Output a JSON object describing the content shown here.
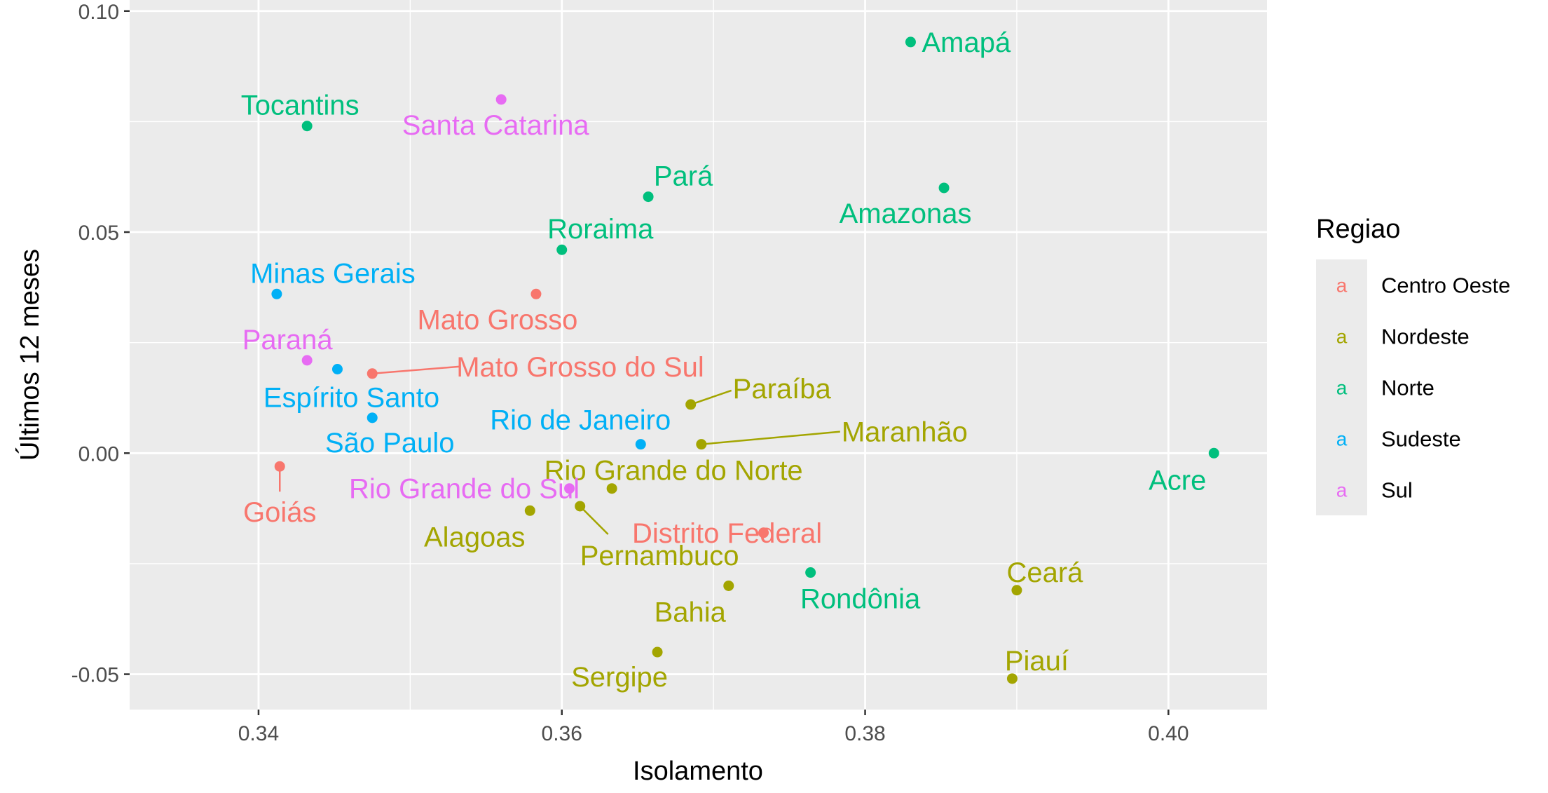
{
  "chart_data": {
    "type": "scatter",
    "xlabel": "Isolamento",
    "ylabel": "Últimos 12 meses",
    "xlim": [
      0.3315,
      0.4065
    ],
    "ylim": [
      -0.058,
      0.1025
    ],
    "x_ticks": [
      0.34,
      0.36,
      0.38,
      0.4
    ],
    "x_tick_labels": [
      "0.34",
      "0.36",
      "0.38",
      "0.40"
    ],
    "y_ticks": [
      -0.05,
      0.0,
      0.05,
      0.1
    ],
    "y_tick_labels": [
      "-0.05",
      "0.00",
      "0.05",
      "0.10"
    ],
    "grid": true,
    "legend": {
      "title": "Regiao",
      "placement": "right",
      "entries": [
        "Centro Oeste",
        "Nordeste",
        "Norte",
        "Sudeste",
        "Sul"
      ],
      "key_glyph": "a"
    },
    "colors": {
      "Centro Oeste": "#F8766D",
      "Nordeste": "#A3A500",
      "Norte": "#00BF7D",
      "Sudeste": "#00B0F6",
      "Sul": "#E76BF3"
    },
    "points": [
      {
        "label": "Amapá",
        "region": "Norte",
        "x": 0.383,
        "y": 0.093
      },
      {
        "label": "Tocantins",
        "region": "Norte",
        "x": 0.3432,
        "y": 0.074
      },
      {
        "label": "Santa Catarina",
        "region": "Sul",
        "x": 0.356,
        "y": 0.08
      },
      {
        "label": "Pará",
        "region": "Norte",
        "x": 0.3657,
        "y": 0.058
      },
      {
        "label": "Amazonas",
        "region": "Norte",
        "x": 0.3852,
        "y": 0.06
      },
      {
        "label": "Roraima",
        "region": "Norte",
        "x": 0.36,
        "y": 0.046
      },
      {
        "label": "Minas Gerais",
        "region": "Sudeste",
        "x": 0.3412,
        "y": 0.036
      },
      {
        "label": "Mato Grosso",
        "region": "Centro Oeste",
        "x": 0.3583,
        "y": 0.036
      },
      {
        "label": "Paraná",
        "region": "Sul",
        "x": 0.3432,
        "y": 0.021
      },
      {
        "label": "Mato Grosso do Sul",
        "region": "Centro Oeste",
        "x": 0.3475,
        "y": 0.018
      },
      {
        "label": "Espírito Santo",
        "region": "Sudeste",
        "x": 0.3452,
        "y": 0.019
      },
      {
        "label": "Paraíba",
        "region": "Nordeste",
        "x": 0.3685,
        "y": 0.011
      },
      {
        "label": "São Paulo",
        "region": "Sudeste",
        "x": 0.3475,
        "y": 0.008
      },
      {
        "label": "Rio de Janeiro",
        "region": "Sudeste",
        "x": 0.3652,
        "y": 0.002
      },
      {
        "label": "Maranhão",
        "region": "Nordeste",
        "x": 0.3692,
        "y": 0.002
      },
      {
        "label": "Acre",
        "region": "Norte",
        "x": 0.403,
        "y": 0.0
      },
      {
        "label": "Goiás",
        "region": "Centro Oeste",
        "x": 0.3414,
        "y": -0.003
      },
      {
        "label": "Rio Grande do Norte",
        "region": "Nordeste",
        "x": 0.3633,
        "y": -0.008
      },
      {
        "label": "Rio Grande do Sul",
        "region": "Sul",
        "x": 0.3605,
        "y": -0.008
      },
      {
        "label": "Alagoas",
        "region": "Nordeste",
        "x": 0.3579,
        "y": -0.013
      },
      {
        "label": "Pernambuco",
        "region": "Nordeste",
        "x": 0.3612,
        "y": -0.012
      },
      {
        "label": "Distrito Federal",
        "region": "Centro Oeste",
        "x": 0.3733,
        "y": -0.018
      },
      {
        "label": "Bahia",
        "region": "Nordeste",
        "x": 0.371,
        "y": -0.03
      },
      {
        "label": "Rondônia",
        "region": "Norte",
        "x": 0.3764,
        "y": -0.027
      },
      {
        "label": "Ceará",
        "region": "Nordeste",
        "x": 0.39,
        "y": -0.031
      },
      {
        "label": "Sergipe",
        "region": "Nordeste",
        "x": 0.3663,
        "y": -0.045
      },
      {
        "label": "Piauí",
        "region": "Nordeste",
        "x": 0.3897,
        "y": -0.051
      }
    ]
  }
}
